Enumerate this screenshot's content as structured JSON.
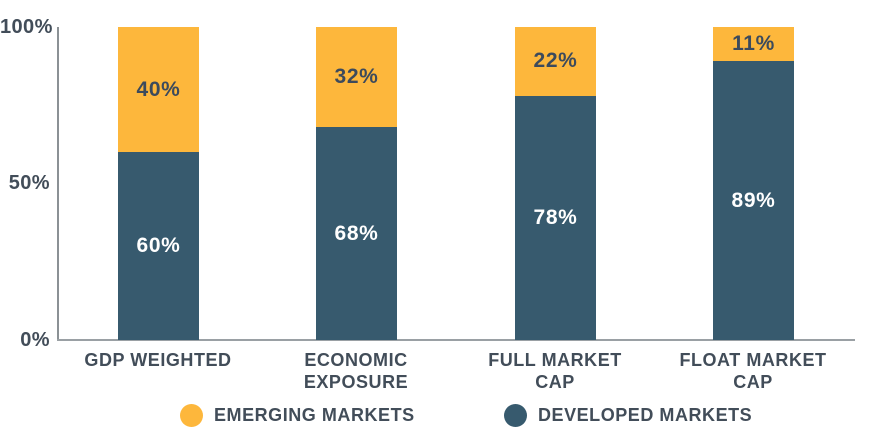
{
  "chart_data": {
    "type": "bar",
    "stacked": true,
    "title": "",
    "categories": [
      "GDP WEIGHTED",
      "ECONOMIC EXPOSURE",
      "FULL MARKET CAP",
      "FLOAT MARKET CAP"
    ],
    "series": [
      {
        "name": "DEVELOPED MARKETS",
        "color": "#375a6e",
        "values": [
          60,
          68,
          78,
          89
        ]
      },
      {
        "name": "EMERGING MARKETS",
        "color": "#fdb73c",
        "values": [
          40,
          32,
          22,
          11
        ]
      }
    ],
    "value_labels": true,
    "ylim": [
      0,
      100
    ],
    "y_tick_labels": [
      "0%",
      "50%",
      "100%"
    ],
    "grid": false,
    "legend_position": "bottom"
  },
  "y_axis": {
    "ticks": [
      {
        "label": "100%",
        "value": 100
      },
      {
        "label": "50%",
        "value": 50
      },
      {
        "label": "0%",
        "value": 0
      }
    ]
  },
  "bars": [
    {
      "category": "GDP WEIGHTED",
      "label_lines": [
        "GDP WEIGHTED",
        ""
      ],
      "developed": 60,
      "emerging": 40,
      "developed_label": "60%",
      "emerging_label": "40%"
    },
    {
      "category": "ECONOMIC EXPOSURE",
      "label_lines": [
        "ECONOMIC",
        "EXPOSURE"
      ],
      "developed": 68,
      "emerging": 32,
      "developed_label": "68%",
      "emerging_label": "32%"
    },
    {
      "category": "FULL MARKET CAP",
      "label_lines": [
        "FULL MARKET",
        "CAP"
      ],
      "developed": 78,
      "emerging": 22,
      "developed_label": "78%",
      "emerging_label": "22%"
    },
    {
      "category": "FLOAT MARKET CAP",
      "label_lines": [
        "FLOAT MARKET",
        "CAP"
      ],
      "developed": 89,
      "emerging": 11,
      "developed_label": "89%",
      "emerging_label": "11%"
    }
  ],
  "legend": {
    "items": [
      {
        "label": "EMERGING MARKETS",
        "color": "#fdb73c"
      },
      {
        "label": "DEVELOPED MARKETS",
        "color": "#375a6e"
      }
    ]
  },
  "colors": {
    "emerging": "#fdb73c",
    "developed": "#375a6e",
    "text": "#424d59",
    "value_on_orange": "#3c4a5c",
    "value_on_dark": "#ffffff",
    "axis": "#8b9195"
  }
}
